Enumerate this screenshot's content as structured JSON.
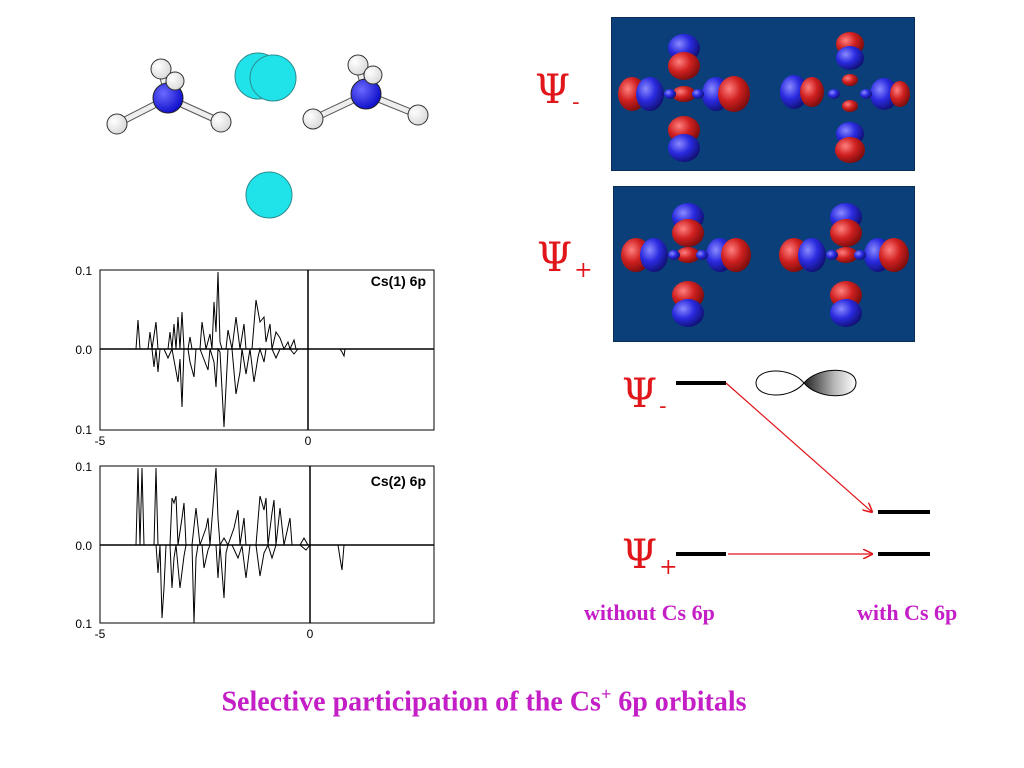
{
  "plots": [
    {
      "title": "Cs(1) 6p",
      "y_ticks": [
        "0.1",
        "0.0",
        "0.1"
      ],
      "x_ticks": [
        "-5",
        "0"
      ]
    },
    {
      "title": "Cs(2) 6p",
      "y_ticks": [
        "0.1",
        "0.0",
        "0.1"
      ],
      "x_ticks": [
        "-5",
        "0"
      ]
    }
  ],
  "orbitals": {
    "psi_minus": "Ψ",
    "psi_minus_sub": "-",
    "psi_plus": "Ψ",
    "psi_plus_sub": "+"
  },
  "levels": {
    "psi_minus": "Ψ",
    "psi_minus_sub": "-",
    "psi_plus": "Ψ",
    "psi_plus_sub": "+",
    "without_label": "without Cs 6p",
    "with_label": "with Cs 6p"
  },
  "caption": {
    "prefix": "Selective participation of the Cs",
    "sup": "+",
    "suffix": " 6p orbitals"
  },
  "colors": {
    "accent_red": "#e0161b",
    "magenta": "#c41fc6",
    "orbital_bg": "#0b3f79",
    "cesium": "#20e3ea",
    "nitrogen": "#1010d8"
  }
}
